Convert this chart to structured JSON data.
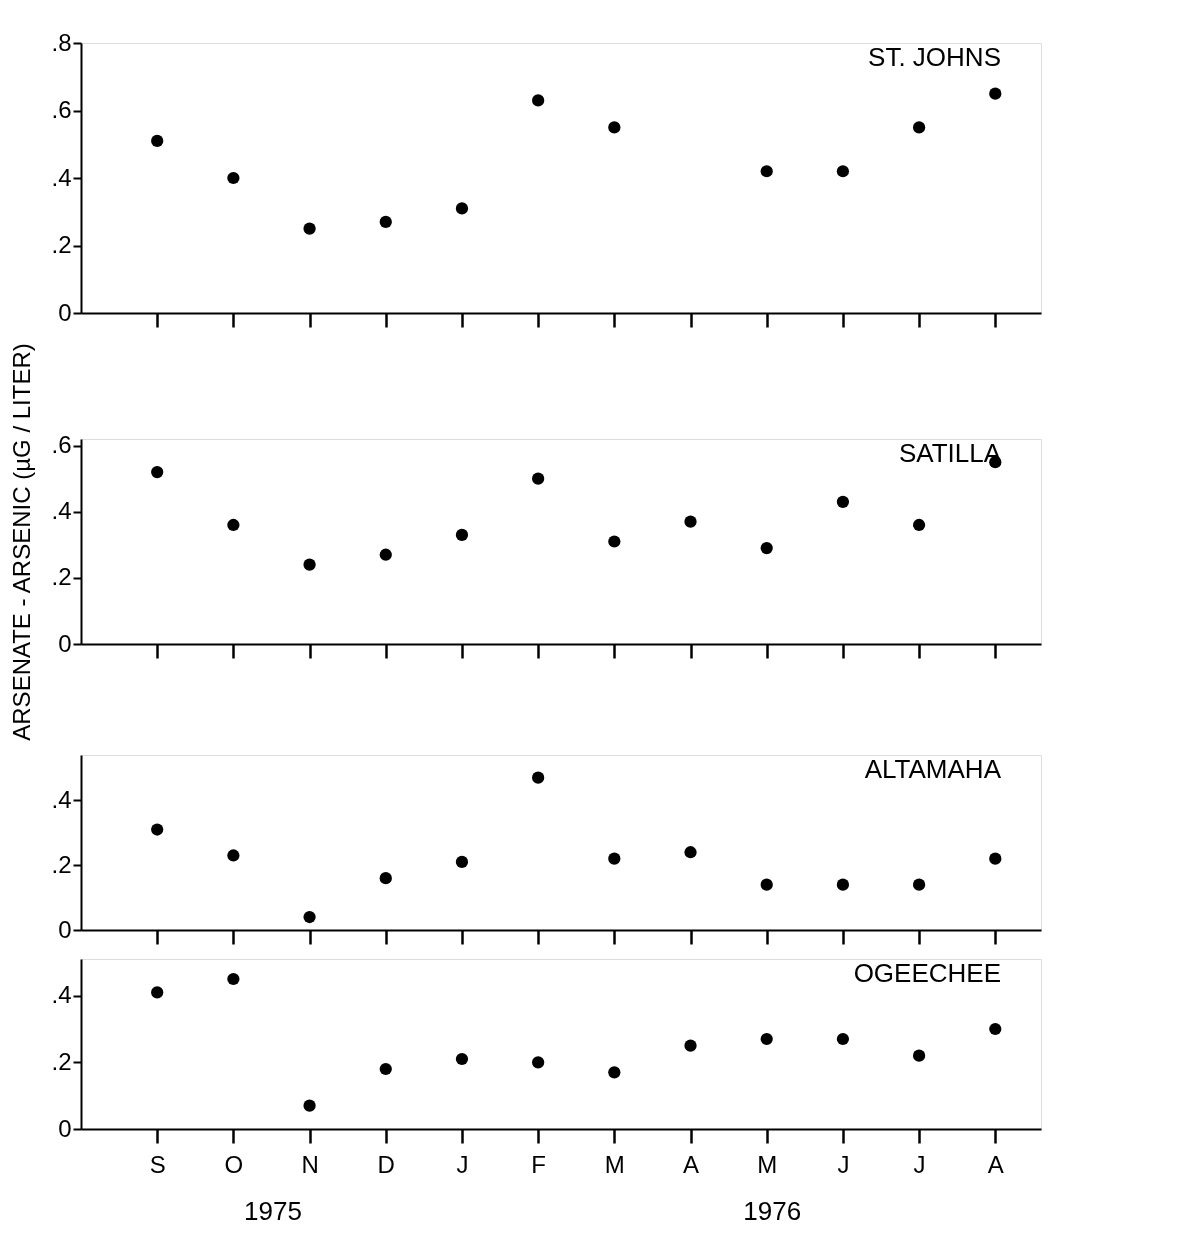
{
  "chart_data": [
    {
      "type": "scatter",
      "title": "ST. JOHNS",
      "categories": [
        null,
        null,
        null,
        null,
        null,
        null,
        null,
        null,
        null,
        null,
        null,
        null
      ],
      "series": [
        {
          "color": "#000000",
          "values": [
            0.51,
            0.4,
            0.25,
            0.27,
            0.31,
            0.63,
            0.55,
            null,
            0.42,
            0.42,
            0.55,
            0.65
          ]
        }
      ],
      "ylim": [
        0,
        0.8
      ],
      "yticks": [
        {
          "value": 0,
          "label": "0"
        },
        {
          "value": 0.2,
          "label": ".2"
        },
        {
          "value": 0.4,
          "label": ".4"
        },
        {
          "value": 0.6,
          "label": ".6"
        },
        {
          "value": 0.8,
          "label": ".8"
        }
      ],
      "tick_labels": "y",
      "marker": "circle",
      "grid": false
    },
    {
      "type": "scatter",
      "title": "SATILLA",
      "ylabel": "ARSENATE - ARSENIC (µG / LITER)",
      "categories": [
        null,
        null,
        null,
        null,
        null,
        null,
        null,
        null,
        null,
        null,
        null,
        null
      ],
      "series": [
        {
          "color": "#000000",
          "values": [
            0.52,
            0.36,
            0.24,
            0.27,
            0.33,
            0.5,
            0.31,
            0.37,
            0.29,
            0.43,
            0.36,
            0.55
          ]
        }
      ],
      "ylim": [
        0,
        0.62
      ],
      "yticks": [
        {
          "value": 0,
          "label": "0"
        },
        {
          "value": 0.2,
          "label": ".2"
        },
        {
          "value": 0.4,
          "label": ".4"
        },
        {
          "value": 0.6,
          "label": ".6"
        }
      ],
      "tick_labels": "y",
      "marker": "circle",
      "grid": false
    },
    {
      "type": "scatter",
      "title": "ALTAMAHA",
      "categories": [
        null,
        null,
        null,
        null,
        null,
        null,
        null,
        null,
        null,
        null,
        null,
        null
      ],
      "series": [
        {
          "color": "#000000",
          "values": [
            0.31,
            0.23,
            0.04,
            0.16,
            0.21,
            0.47,
            0.22,
            0.24,
            0.14,
            0.14,
            0.14,
            0.22
          ]
        }
      ],
      "ylim": [
        0,
        0.54
      ],
      "yticks": [
        {
          "value": 0,
          "label": "0"
        },
        {
          "value": 0.2,
          "label": ".2"
        },
        {
          "value": 0.4,
          "label": ".4"
        }
      ],
      "tick_labels": "y",
      "marker": "circle",
      "grid": false
    },
    {
      "type": "scatter",
      "title": "OGEECHEE",
      "categories": [
        "S",
        "O",
        "N",
        "D",
        "J",
        "F",
        "M",
        "A",
        "M",
        "J",
        "J",
        "A"
      ],
      "series": [
        {
          "color": "#000000",
          "values": [
            0.41,
            0.45,
            0.07,
            0.18,
            0.21,
            0.2,
            0.17,
            0.25,
            0.27,
            0.27,
            0.22,
            0.3
          ]
        }
      ],
      "ylim": [
        0,
        0.51
      ],
      "yticks": [
        {
          "value": 0,
          "label": "0"
        },
        {
          "value": 0.2,
          "label": ".2"
        },
        {
          "value": 0.4,
          "label": ".4"
        }
      ],
      "marker": "circle",
      "grid": false,
      "annotations": [
        "1975",
        "1976"
      ]
    }
  ]
}
